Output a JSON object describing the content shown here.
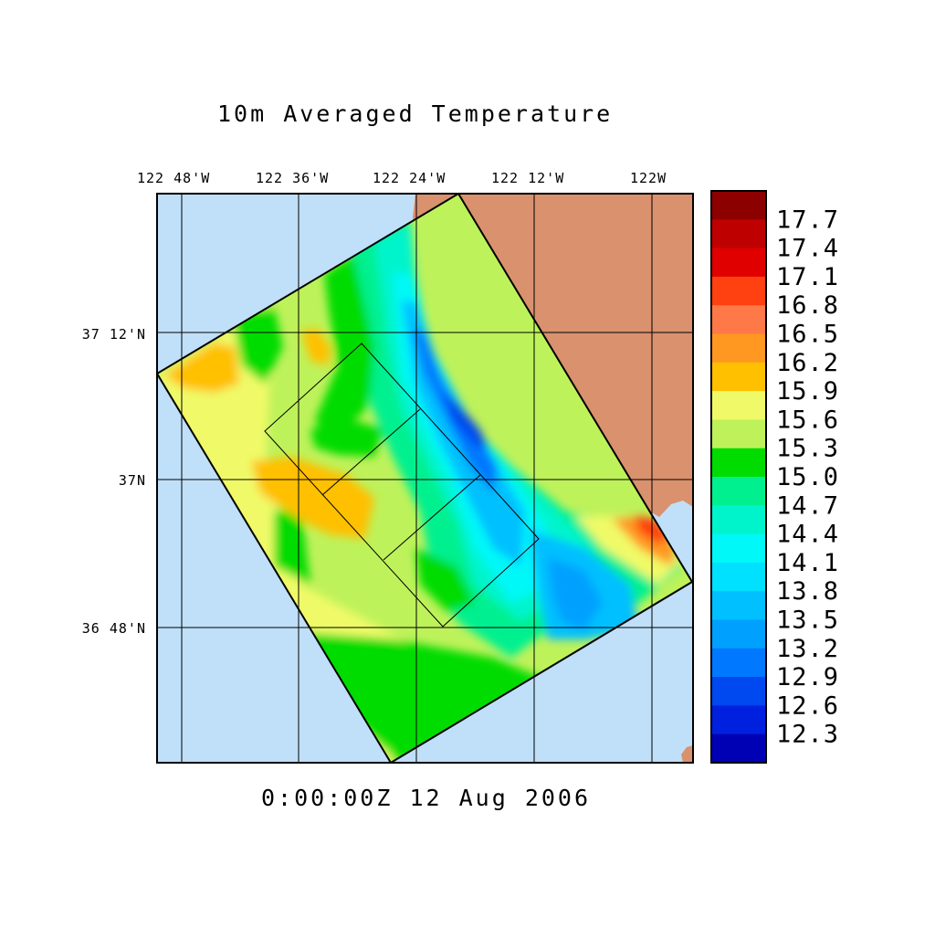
{
  "map": {
    "title": "10m Averaged Temperature",
    "timestamp": "0:00:00Z  12 Aug 2006",
    "lon_labels": [
      "122 48'W",
      "122 36'W",
      "122 24'W",
      "122 12'W",
      "122W"
    ],
    "lat_labels": [
      "37 12'N",
      "37N",
      "36 48'N"
    ],
    "colors": {
      "ocean": "#c0dff8",
      "land": "#d9916e",
      "grid": "#000000"
    }
  },
  "legend": {
    "labels": [
      "17.7",
      "17.4",
      "17.1",
      "16.8",
      "16.5",
      "16.2",
      "15.9",
      "15.6",
      "15.3",
      "15.0",
      "14.7",
      "14.4",
      "14.1",
      "13.8",
      "13.5",
      "13.2",
      "12.9",
      "12.6",
      "12.3"
    ],
    "colors": [
      "#8c0000",
      "#bf0000",
      "#e00000",
      "#ff4010",
      "#ff7848",
      "#ff9820",
      "#ffc000",
      "#f0fa68",
      "#bef25a",
      "#00dc00",
      "#00f090",
      "#00f4cc",
      "#00f8f8",
      "#00e0ff",
      "#00c0ff",
      "#00a0ff",
      "#0078ff",
      "#0048f0",
      "#0020e0",
      "#0000b4"
    ]
  }
}
